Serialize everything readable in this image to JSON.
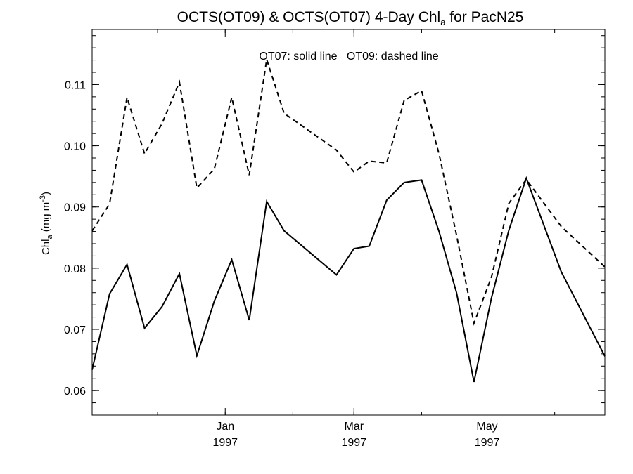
{
  "chart_data": {
    "type": "line",
    "title_main": "OCTS(OT09) & OCTS(OT07) 4-Day Chl",
    "title_sub": "a",
    "title_tail": " for PacN25",
    "annotation": "OT07: solid line   OT09: dashed line",
    "ylabel_main": "Chl",
    "ylabel_sub": "a",
    "ylabel_unit": " (mg m",
    "ylabel_sup": "-3",
    "ylabel_close": ")",
    "xlabel": "",
    "ylim": [
      0.056,
      0.119
    ],
    "y_ticks": [
      {
        "value": 0.06,
        "label": "0.06"
      },
      {
        "value": 0.07,
        "label": "0.07"
      },
      {
        "value": 0.08,
        "label": "0.08"
      },
      {
        "value": 0.09,
        "label": "0.09"
      },
      {
        "value": 0.1,
        "label": "0.10"
      },
      {
        "value": 0.11,
        "label": "0.11"
      }
    ],
    "xlim": [
      "1996-11-01",
      "1997-06-24"
    ],
    "x_ticks": [
      {
        "date": "1997-01-01",
        "line1": "Jan",
        "line2": "1997"
      },
      {
        "date": "1997-03-01",
        "line1": "Mar",
        "line2": "1997"
      },
      {
        "date": "1997-05-01",
        "line1": "May",
        "line2": "1997"
      }
    ],
    "series": [
      {
        "name": "OT07",
        "style": "solid",
        "color": "#000000",
        "x": [
          "1996-11-01",
          "1996-11-09",
          "1996-11-17",
          "1996-11-25",
          "1996-12-03",
          "1996-12-11",
          "1996-12-19",
          "1996-12-27",
          "1997-01-04",
          "1997-01-12",
          "1997-01-20",
          "1997-01-28",
          "1997-02-21",
          "1997-02-29",
          "1997-03-08",
          "1997-03-16",
          "1997-03-24",
          "1997-04-01",
          "1997-04-09",
          "1997-04-17",
          "1997-04-25",
          "1997-05-03",
          "1997-05-11",
          "1997-05-19",
          "1997-06-04",
          "1997-06-24"
        ],
        "y": [
          0.0634,
          0.0758,
          0.0806,
          0.0702,
          0.0737,
          0.0791,
          0.0657,
          0.0746,
          0.0814,
          0.0715,
          0.0909,
          0.0861,
          0.0789,
          0.0832,
          0.0836,
          0.0911,
          0.094,
          0.0944,
          0.086,
          0.076,
          0.0614,
          0.0751,
          0.0862,
          0.0947,
          0.0794,
          0.0656
        ]
      },
      {
        "name": "OT09",
        "style": "dashed",
        "color": "#000000",
        "x": [
          "1996-11-01",
          "1996-11-09",
          "1996-11-17",
          "1996-11-25",
          "1996-12-03",
          "1996-12-11",
          "1996-12-19",
          "1996-12-27",
          "1997-01-04",
          "1997-01-12",
          "1997-01-20",
          "1997-01-28",
          "1997-02-21",
          "1997-02-29",
          "1997-03-08",
          "1997-03-16",
          "1997-03-24",
          "1997-04-01",
          "1997-04-09",
          "1997-04-17",
          "1997-04-25",
          "1997-05-03",
          "1997-05-11",
          "1997-05-19",
          "1997-06-04",
          "1997-06-24"
        ],
        "y": [
          0.0861,
          0.0905,
          0.1079,
          0.0987,
          0.1036,
          0.1104,
          0.0931,
          0.0962,
          0.1079,
          0.0952,
          0.1141,
          0.1053,
          0.0993,
          0.0957,
          0.0975,
          0.0972,
          0.1074,
          0.109,
          0.0987,
          0.0854,
          0.071,
          0.0785,
          0.0906,
          0.0945,
          0.0868,
          0.0802
        ]
      }
    ]
  }
}
